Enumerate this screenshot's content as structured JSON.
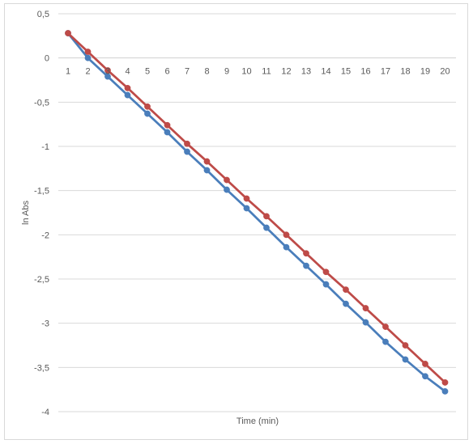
{
  "chart_data": {
    "type": "line",
    "title": "",
    "xlabel": "Time (min)",
    "ylabel": "ln Abs",
    "ylim": [
      -4,
      0.5
    ],
    "y_ticks": [
      "0,5",
      "0",
      "-0,5",
      "-1",
      "-1,5",
      "-2",
      "-2,5",
      "-3",
      "-3,5",
      "-4"
    ],
    "categories": [
      "1",
      "2",
      "3",
      "4",
      "5",
      "6",
      "7",
      "8",
      "9",
      "10",
      "11",
      "12",
      "13",
      "14",
      "15",
      "16",
      "17",
      "18",
      "19",
      "20"
    ],
    "grid": "horizontal",
    "legend": "none",
    "series": [
      {
        "color": "#4a7ebb",
        "values": [
          0.28,
          0.0,
          -0.21,
          -0.42,
          -0.63,
          -0.84,
          -1.06,
          -1.27,
          -1.49,
          -1.7,
          -1.92,
          -2.14,
          -2.35,
          -2.56,
          -2.78,
          -2.99,
          -3.21,
          -3.41,
          -3.6,
          -3.77
        ]
      },
      {
        "color": "#be4b48",
        "values": [
          0.28,
          0.07,
          -0.14,
          -0.34,
          -0.55,
          -0.76,
          -0.97,
          -1.17,
          -1.38,
          -1.59,
          -1.79,
          -2.0,
          -2.21,
          -2.42,
          -2.62,
          -2.83,
          -3.04,
          -3.25,
          -3.46,
          -3.67
        ]
      }
    ]
  }
}
